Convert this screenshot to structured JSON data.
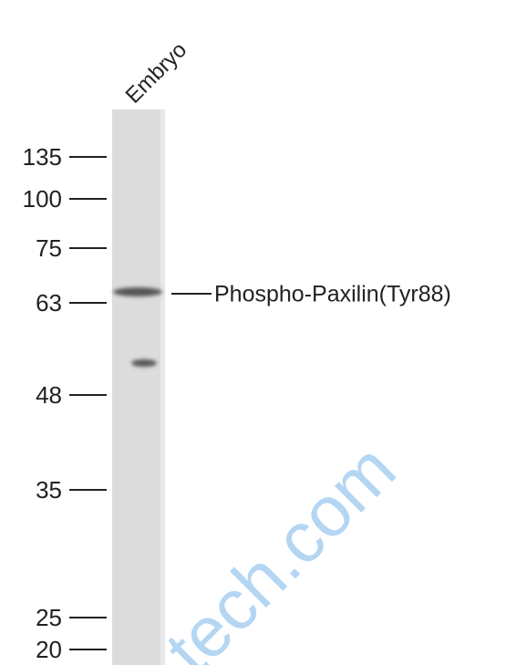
{
  "lane_label": "Embryo",
  "markers": [
    "135",
    "100",
    "75",
    "63",
    "48",
    "35",
    "25",
    "20"
  ],
  "band_label": "Phospho-Paxilin(Tyr88)",
  "watermark": "tech.com"
}
